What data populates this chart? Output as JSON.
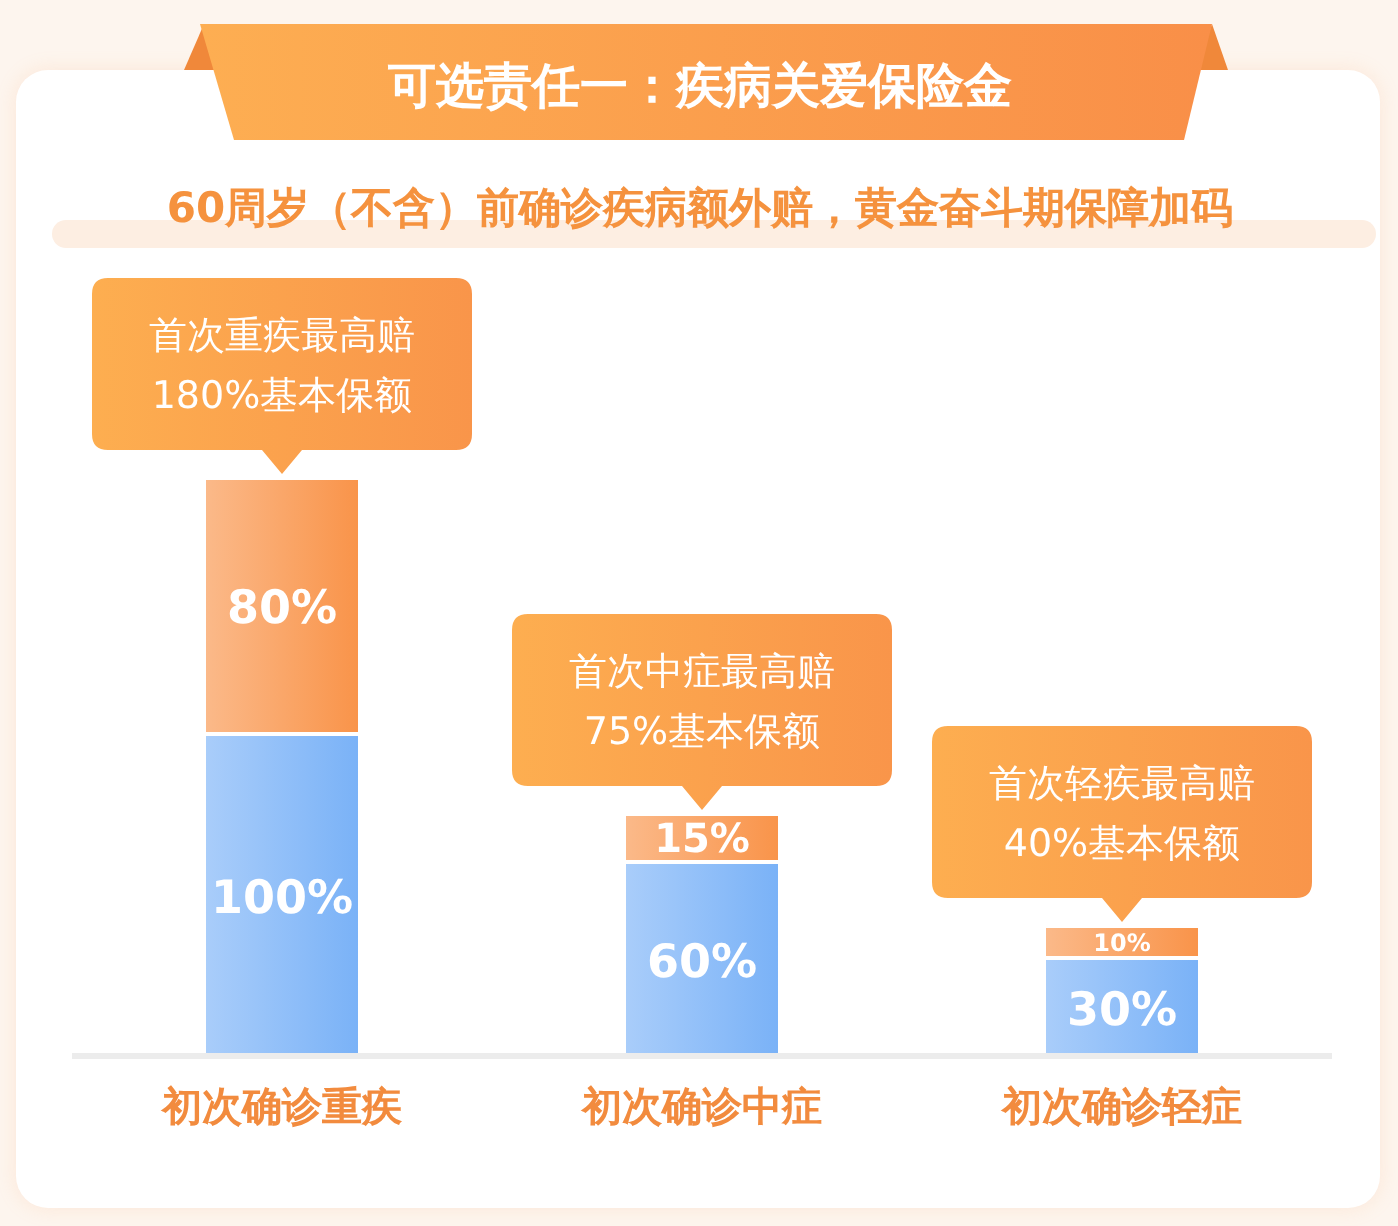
{
  "chart_data": {
    "type": "bar",
    "title": "可选责任一：疾病关爱保险金",
    "subtitle": "60周岁（不含）前确诊疾病额外赔，黄金奋斗期保障加码",
    "categories": [
      "初次确诊重疾",
      "初次确诊中症",
      "初次确诊轻症"
    ],
    "stacked": true,
    "tick_labels": "x",
    "series": [
      {
        "color": "#7ab2f7",
        "values": [
          100,
          60,
          30
        ],
        "value_labels": [
          "100%",
          "60%",
          "30%"
        ]
      },
      {
        "color": "#f9944a",
        "values": [
          80,
          15,
          10
        ],
        "value_labels": [
          "80%",
          "15%",
          "10%"
        ]
      }
    ],
    "annotations": [
      {
        "text": "首次重疾最高赔\n180%基本保额",
        "x": "初次确诊重疾",
        "y": 180
      },
      {
        "text": "首次中症最高赔\n75%基本保额",
        "x": "初次确诊中症",
        "y": 75
      },
      {
        "text": "首次轻疾最高赔\n40%基本保额",
        "x": "初次确诊轻症",
        "y": 40
      }
    ]
  }
}
